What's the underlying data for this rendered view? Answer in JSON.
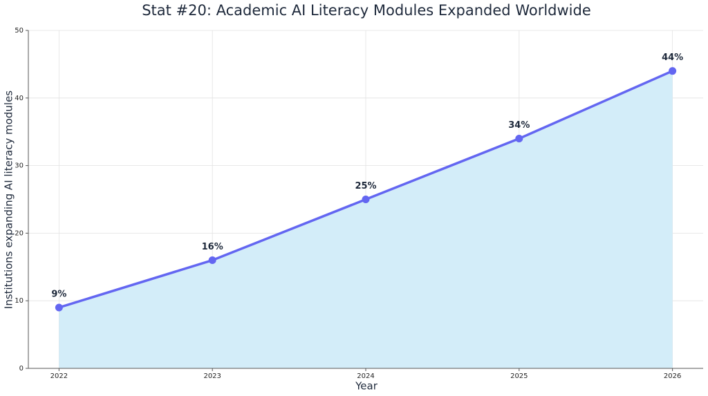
{
  "chart_data": {
    "type": "line",
    "title": "Stat #20: Academic AI Literacy Modules Expanded Worldwide",
    "x_label": "Year",
    "y_label": "Institutions expanding AI literacy modules",
    "x": [
      2022,
      2023,
      2024,
      2025,
      2026
    ],
    "series": [
      {
        "name": "Institutions expanding AI literacy modules",
        "color": "#6366f1",
        "fill": "#d3edf9",
        "values": [
          9,
          16,
          25,
          34,
          44
        ],
        "value_labels": [
          "9%",
          "16%",
          "25%",
          "34%",
          "44%"
        ]
      }
    ],
    "xlim": [
      2021.8,
      2026.2
    ],
    "xticks": [
      2022,
      2023,
      2024,
      2025,
      2026
    ],
    "ylim": [
      0,
      50
    ],
    "yticks": [
      0,
      10,
      20,
      30,
      40,
      50
    ],
    "grid": true
  }
}
